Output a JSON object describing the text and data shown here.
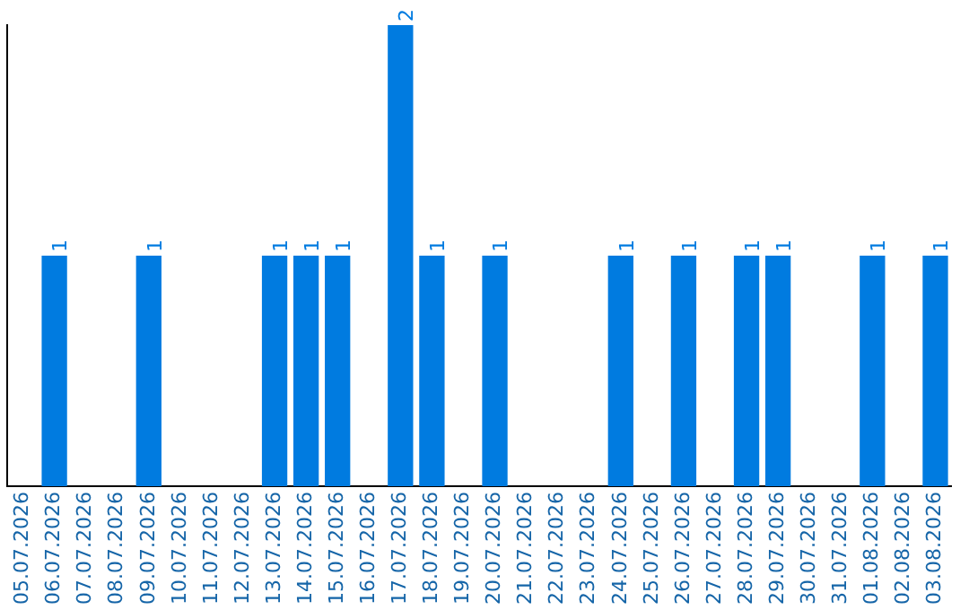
{
  "chart_data": {
    "type": "bar",
    "categories": [
      "05.07.2026",
      "06.07.2026",
      "07.07.2026",
      "08.07.2026",
      "09.07.2026",
      "10.07.2026",
      "11.07.2026",
      "12.07.2026",
      "13.07.2026",
      "14.07.2026",
      "15.07.2026",
      "16.07.2026",
      "17.07.2026",
      "18.07.2026",
      "19.07.2026",
      "20.07.2026",
      "21.07.2026",
      "22.07.2026",
      "23.07.2026",
      "24.07.2026",
      "25.07.2026",
      "26.07.2026",
      "27.07.2026",
      "28.07.2026",
      "29.07.2026",
      "30.07.2026",
      "31.07.2026",
      "01.08.2026",
      "02.08.2026",
      "03.08.2026"
    ],
    "values": [
      0,
      1,
      0,
      0,
      1,
      0,
      0,
      0,
      1,
      1,
      1,
      0,
      2,
      1,
      0,
      1,
      0,
      0,
      0,
      1,
      0,
      1,
      0,
      1,
      1,
      0,
      0,
      1,
      0,
      1
    ],
    "value_labels": [
      null,
      "1",
      null,
      null,
      "1",
      null,
      null,
      null,
      "1",
      "1",
      "1",
      null,
      "2",
      "1",
      null,
      "1",
      null,
      null,
      null,
      "1",
      null,
      "1",
      null,
      "1",
      "1",
      null,
      null,
      "1",
      null,
      "1"
    ],
    "color": "#007be0",
    "grid": false,
    "legend": false,
    "tick_labels": "x"
  }
}
